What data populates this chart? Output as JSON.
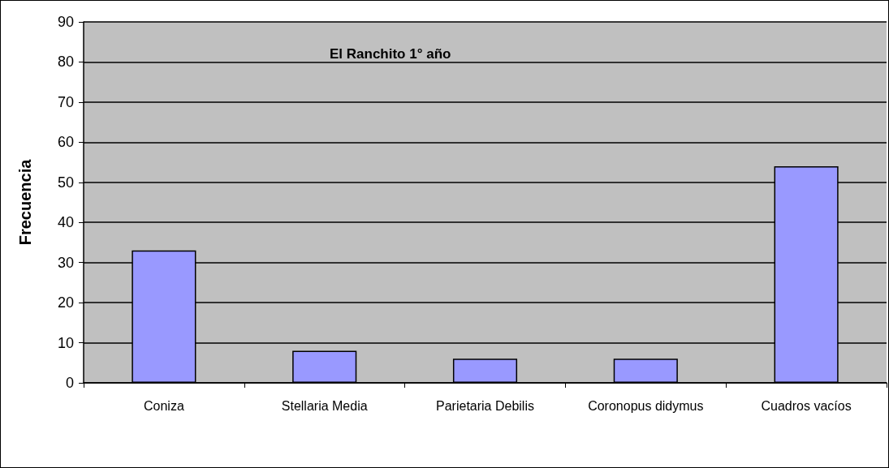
{
  "chart_data": {
    "type": "bar",
    "title": "El Ranchito 1° año",
    "ylabel": "Frecuencia",
    "categories": [
      "Coniza",
      "Stellaria Media",
      "Parietaria Debilis",
      "Coronopus didymus",
      "Cuadros vacíos"
    ],
    "values": [
      33,
      8,
      6,
      6,
      54
    ],
    "color": "#9999ff",
    "ylim": [
      0,
      90
    ],
    "yticks": [
      0,
      10,
      20,
      30,
      40,
      50,
      60,
      70,
      80,
      90
    ],
    "grid": "y"
  }
}
